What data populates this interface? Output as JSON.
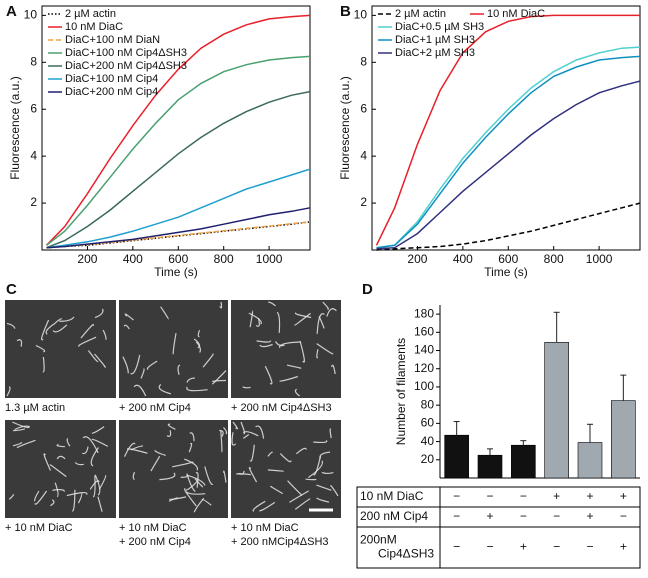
{
  "chart_data": [
    {
      "type": "line",
      "panel": "A",
      "xlabel": "Time (s)",
      "ylabel": "Fluorescence (a.u.)",
      "x": [
        20,
        100,
        200,
        300,
        400,
        500,
        600,
        700,
        800,
        900,
        1000,
        1100,
        1180
      ],
      "xlim": [
        0,
        1180
      ],
      "ylim": [
        0,
        10.4
      ],
      "xticks": [
        200,
        400,
        600,
        800,
        1000
      ],
      "yticks": [
        2,
        4,
        6,
        8,
        10
      ],
      "legend": "upper left",
      "series": [
        {
          "name": "2 µM actin",
          "color": "#000000",
          "dash": "dotted",
          "values": [
            0.1,
            0.15,
            0.2,
            0.3,
            0.4,
            0.5,
            0.6,
            0.7,
            0.8,
            0.9,
            1.0,
            1.1,
            1.2
          ]
        },
        {
          "name": "10 nM DiaC",
          "color": "#e8202a",
          "dash": "solid",
          "values": [
            0.2,
            1.0,
            2.4,
            3.9,
            5.3,
            6.6,
            7.7,
            8.6,
            9.2,
            9.6,
            9.85,
            9.95,
            10.0
          ]
        },
        {
          "name": "DiaC+100 nM DiaN",
          "color": "#f0a040",
          "dash": "dashed",
          "values": [
            0.1,
            0.15,
            0.22,
            0.32,
            0.42,
            0.52,
            0.62,
            0.72,
            0.82,
            0.92,
            1.02,
            1.12,
            1.2
          ]
        },
        {
          "name": "DiaC+100 nM Cip4ΔSH3",
          "color": "#4aa070",
          "dash": "solid",
          "values": [
            0.2,
            0.8,
            1.9,
            3.1,
            4.3,
            5.4,
            6.4,
            7.1,
            7.6,
            7.9,
            8.1,
            8.2,
            8.25
          ]
        },
        {
          "name": "DiaC+200 nM Cip4ΔSH3",
          "color": "#3a6a5a",
          "dash": "solid",
          "values": [
            0.1,
            0.4,
            1.0,
            1.7,
            2.5,
            3.3,
            4.1,
            4.8,
            5.4,
            5.9,
            6.3,
            6.6,
            6.75
          ]
        },
        {
          "name": "DiaC+100 nM Cip4",
          "color": "#20a0d0",
          "dash": "solid",
          "values": [
            0.1,
            0.2,
            0.35,
            0.55,
            0.8,
            1.1,
            1.4,
            1.8,
            2.2,
            2.6,
            2.9,
            3.2,
            3.45
          ]
        },
        {
          "name": "DiaC+200 nM Cip4",
          "color": "#202070",
          "dash": "solid",
          "values": [
            0.1,
            0.15,
            0.25,
            0.35,
            0.45,
            0.6,
            0.75,
            0.9,
            1.1,
            1.3,
            1.5,
            1.65,
            1.8
          ]
        }
      ]
    },
    {
      "type": "line",
      "panel": "B",
      "xlabel": "Time (s)",
      "ylabel": "Fluorescence (a.u.)",
      "x": [
        20,
        100,
        200,
        300,
        400,
        500,
        600,
        700,
        800,
        900,
        1000,
        1100,
        1180
      ],
      "xlim": [
        0,
        1180
      ],
      "ylim": [
        0,
        10.4
      ],
      "xticks": [
        200,
        400,
        600,
        800,
        1000
      ],
      "yticks": [
        2,
        4,
        6,
        8,
        10
      ],
      "legend": "upper left",
      "series": [
        {
          "name": "2 µM actin",
          "color": "#000000",
          "dash": "dashed",
          "values": [
            0,
            0.05,
            0.1,
            0.15,
            0.25,
            0.4,
            0.6,
            0.8,
            1.05,
            1.3,
            1.55,
            1.8,
            2.0
          ]
        },
        {
          "name": "10 nM DiaC",
          "color": "#e8202a",
          "dash": "solid",
          "values": [
            0.2,
            1.8,
            4.5,
            6.8,
            8.4,
            9.3,
            9.75,
            9.95,
            10,
            10,
            10,
            10,
            10
          ]
        },
        {
          "name": "DiaC+0.5 µM SH3",
          "color": "#50d0d0",
          "dash": "solid",
          "values": [
            0.1,
            0.2,
            1.2,
            2.6,
            3.9,
            5.0,
            6.0,
            6.9,
            7.6,
            8.1,
            8.4,
            8.6,
            8.65
          ]
        },
        {
          "name": "DiaC+1 µM SH3",
          "color": "#1090c0",
          "dash": "solid",
          "values": [
            0.1,
            0.2,
            1.1,
            2.4,
            3.7,
            4.8,
            5.8,
            6.7,
            7.4,
            7.8,
            8.1,
            8.2,
            8.25
          ]
        },
        {
          "name": "DiaC+2 µM SH3",
          "color": "#303080",
          "dash": "solid",
          "values": [
            0.05,
            0.1,
            0.7,
            1.6,
            2.5,
            3.3,
            4.1,
            4.9,
            5.6,
            6.2,
            6.7,
            7.0,
            7.2
          ]
        }
      ]
    },
    {
      "type": "bar",
      "panel": "D",
      "ylabel": "Number of filaments",
      "values": [
        47,
        25,
        36,
        149,
        39,
        85
      ],
      "errors": [
        15,
        7,
        5,
        33,
        20,
        28
      ],
      "colors": [
        "#111111",
        "#111111",
        "#111111",
        "#a0a8b0",
        "#a0a8b0",
        "#a0a8b0"
      ],
      "ylim": [
        0,
        190
      ],
      "yticks": [
        20,
        40,
        60,
        80,
        100,
        120,
        140,
        160,
        180
      ],
      "conditions": [
        {
          "label": [
            "10 nM DiaC"
          ],
          "signs": [
            "−",
            "−",
            "−",
            "+",
            "+",
            "+"
          ]
        },
        {
          "label": [
            "200 nM Cip4"
          ],
          "signs": [
            "−",
            "+",
            "−",
            "−",
            "+",
            "−"
          ]
        },
        {
          "label": [
            "200nM",
            "Cip4ΔSH3"
          ],
          "signs": [
            "−",
            "−",
            "+",
            "−",
            "−",
            "+"
          ]
        }
      ]
    }
  ],
  "panel_c": {
    "panel": "C",
    "images": [
      {
        "caption": [
          "1.3 µM actin"
        ]
      },
      {
        "caption": [
          "+ 200 nM Cip4"
        ]
      },
      {
        "caption": [
          "+ 200 nM Cip4ΔSH3"
        ]
      },
      {
        "caption": [
          "+ 10 nM DiaC"
        ]
      },
      {
        "caption": [
          "+ 10 nM DiaC",
          "+ 200 nM Cip4"
        ]
      },
      {
        "caption": [
          "+ 10 nM DiaC",
          "+ 200 nMCip4ΔSH3"
        ]
      }
    ]
  }
}
